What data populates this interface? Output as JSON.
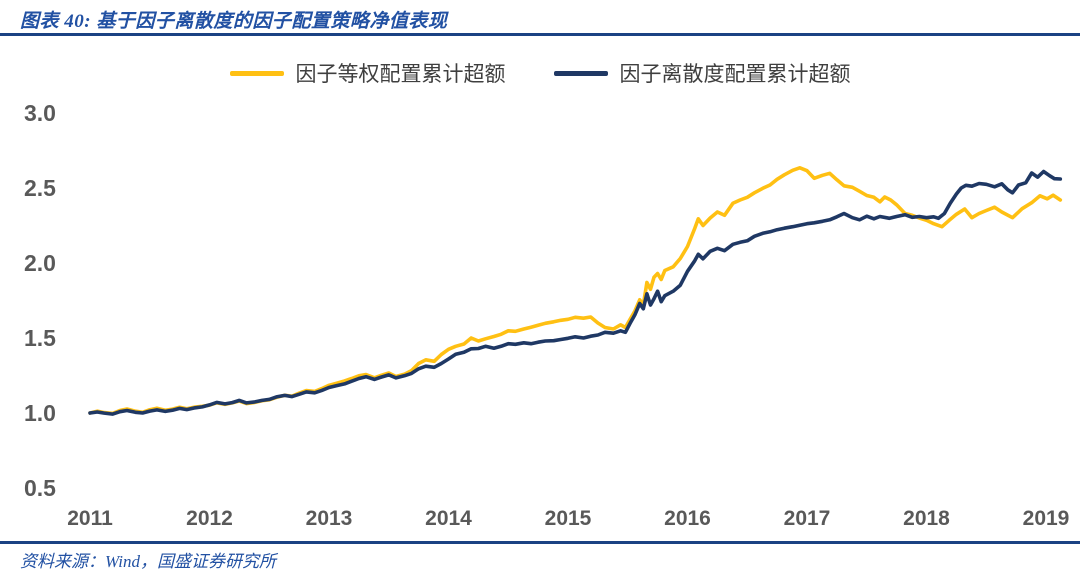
{
  "page": {
    "title": "图表 40: 基于因子离散度的因子配置策略净值表现",
    "source": "资料来源：Wind，国盛证券研究所"
  },
  "colors": {
    "accent_blue": "#2251A3",
    "divider_blue": "#1B4283",
    "axis_label_gray": "#595959",
    "series_yellow": "#FFC013",
    "series_navy": "#1F3864"
  },
  "chart_data": {
    "type": "line",
    "title": "基于因子离散度的因子配置策略净值表现",
    "xlabel": "",
    "ylabel": "",
    "grid": false,
    "legend_position": "top-center",
    "xlim": [
      2010.82,
      2019.28
    ],
    "ylim": [
      0.5,
      3.0
    ],
    "y_ticks": [
      {
        "label": "3.0",
        "value": 3.0
      },
      {
        "label": "2.5",
        "value": 2.5
      },
      {
        "label": "2.0",
        "value": 2.0
      },
      {
        "label": "1.5",
        "value": 1.5
      },
      {
        "label": "1.0",
        "value": 1.0
      },
      {
        "label": "0.5",
        "value": 0.5
      }
    ],
    "x_ticks": [
      {
        "label": "2011",
        "value": 2011
      },
      {
        "label": "2012",
        "value": 2012
      },
      {
        "label": "2013",
        "value": 2013
      },
      {
        "label": "2014",
        "value": 2014
      },
      {
        "label": "2015",
        "value": 2015
      },
      {
        "label": "2016",
        "value": 2016
      },
      {
        "label": "2017",
        "value": 2017
      },
      {
        "label": "2018",
        "value": 2018
      },
      {
        "label": "2019",
        "value": 2019
      }
    ],
    "series": [
      {
        "key": "equal-weight",
        "name": "因子等权配置累计超额",
        "color": "#FFC013",
        "points": [
          [
            2011.0,
            1.0
          ],
          [
            2011.06,
            1.012
          ],
          [
            2011.12,
            1.003
          ],
          [
            2011.19,
            0.997
          ],
          [
            2011.25,
            1.017
          ],
          [
            2011.31,
            1.027
          ],
          [
            2011.38,
            1.012
          ],
          [
            2011.44,
            1.005
          ],
          [
            2011.5,
            1.022
          ],
          [
            2011.56,
            1.032
          ],
          [
            2011.63,
            1.018
          ],
          [
            2011.69,
            1.026
          ],
          [
            2011.75,
            1.038
          ],
          [
            2011.81,
            1.028
          ],
          [
            2011.88,
            1.04
          ],
          [
            2011.94,
            1.045
          ],
          [
            2012.0,
            1.052
          ],
          [
            2012.06,
            1.068
          ],
          [
            2012.13,
            1.058
          ],
          [
            2012.19,
            1.067
          ],
          [
            2012.25,
            1.08
          ],
          [
            2012.31,
            1.063
          ],
          [
            2012.38,
            1.071
          ],
          [
            2012.44,
            1.082
          ],
          [
            2012.5,
            1.088
          ],
          [
            2012.56,
            1.104
          ],
          [
            2012.63,
            1.118
          ],
          [
            2012.69,
            1.112
          ],
          [
            2012.75,
            1.132
          ],
          [
            2012.81,
            1.15
          ],
          [
            2012.88,
            1.144
          ],
          [
            2012.94,
            1.163
          ],
          [
            2013.0,
            1.185
          ],
          [
            2013.06,
            1.198
          ],
          [
            2013.13,
            1.213
          ],
          [
            2013.19,
            1.23
          ],
          [
            2013.25,
            1.248
          ],
          [
            2013.31,
            1.257
          ],
          [
            2013.38,
            1.235
          ],
          [
            2013.44,
            1.252
          ],
          [
            2013.5,
            1.267
          ],
          [
            2013.56,
            1.243
          ],
          [
            2013.63,
            1.258
          ],
          [
            2013.69,
            1.283
          ],
          [
            2013.75,
            1.33
          ],
          [
            2013.81,
            1.355
          ],
          [
            2013.88,
            1.345
          ],
          [
            2013.94,
            1.39
          ],
          [
            2014.0,
            1.425
          ],
          [
            2014.06,
            1.445
          ],
          [
            2014.13,
            1.46
          ],
          [
            2014.19,
            1.5
          ],
          [
            2014.25,
            1.48
          ],
          [
            2014.31,
            1.495
          ],
          [
            2014.38,
            1.51
          ],
          [
            2014.44,
            1.525
          ],
          [
            2014.5,
            1.548
          ],
          [
            2014.56,
            1.545
          ],
          [
            2014.63,
            1.56
          ],
          [
            2014.69,
            1.572
          ],
          [
            2014.75,
            1.585
          ],
          [
            2014.81,
            1.598
          ],
          [
            2014.88,
            1.608
          ],
          [
            2014.94,
            1.618
          ],
          [
            2015.0,
            1.625
          ],
          [
            2015.06,
            1.638
          ],
          [
            2015.13,
            1.632
          ],
          [
            2015.19,
            1.64
          ],
          [
            2015.25,
            1.6
          ],
          [
            2015.31,
            1.57
          ],
          [
            2015.38,
            1.56
          ],
          [
            2015.44,
            1.588
          ],
          [
            2015.48,
            1.57
          ],
          [
            2015.52,
            1.625
          ],
          [
            2015.56,
            1.68
          ],
          [
            2015.6,
            1.755
          ],
          [
            2015.63,
            1.72
          ],
          [
            2015.66,
            1.87
          ],
          [
            2015.69,
            1.825
          ],
          [
            2015.72,
            1.905
          ],
          [
            2015.75,
            1.93
          ],
          [
            2015.78,
            1.89
          ],
          [
            2015.81,
            1.95
          ],
          [
            2015.88,
            1.975
          ],
          [
            2015.94,
            2.03
          ],
          [
            2016.0,
            2.11
          ],
          [
            2016.06,
            2.23
          ],
          [
            2016.09,
            2.295
          ],
          [
            2016.13,
            2.25
          ],
          [
            2016.19,
            2.3
          ],
          [
            2016.25,
            2.34
          ],
          [
            2016.31,
            2.318
          ],
          [
            2016.38,
            2.398
          ],
          [
            2016.44,
            2.42
          ],
          [
            2016.5,
            2.438
          ],
          [
            2016.56,
            2.468
          ],
          [
            2016.63,
            2.498
          ],
          [
            2016.69,
            2.52
          ],
          [
            2016.75,
            2.558
          ],
          [
            2016.81,
            2.588
          ],
          [
            2016.88,
            2.618
          ],
          [
            2016.94,
            2.635
          ],
          [
            2017.0,
            2.615
          ],
          [
            2017.06,
            2.565
          ],
          [
            2017.13,
            2.585
          ],
          [
            2017.19,
            2.598
          ],
          [
            2017.25,
            2.555
          ],
          [
            2017.31,
            2.515
          ],
          [
            2017.38,
            2.505
          ],
          [
            2017.44,
            2.478
          ],
          [
            2017.5,
            2.45
          ],
          [
            2017.56,
            2.438
          ],
          [
            2017.61,
            2.408
          ],
          [
            2017.65,
            2.44
          ],
          [
            2017.7,
            2.42
          ],
          [
            2017.75,
            2.388
          ],
          [
            2017.82,
            2.33
          ],
          [
            2017.88,
            2.318
          ],
          [
            2017.94,
            2.3
          ],
          [
            2018.0,
            2.285
          ],
          [
            2018.06,
            2.262
          ],
          [
            2018.13,
            2.242
          ],
          [
            2018.19,
            2.285
          ],
          [
            2018.25,
            2.325
          ],
          [
            2018.32,
            2.36
          ],
          [
            2018.38,
            2.302
          ],
          [
            2018.44,
            2.33
          ],
          [
            2018.5,
            2.35
          ],
          [
            2018.57,
            2.372
          ],
          [
            2018.63,
            2.34
          ],
          [
            2018.72,
            2.302
          ],
          [
            2018.8,
            2.362
          ],
          [
            2018.88,
            2.402
          ],
          [
            2018.95,
            2.448
          ],
          [
            2019.01,
            2.428
          ],
          [
            2019.06,
            2.452
          ],
          [
            2019.12,
            2.42
          ]
        ]
      },
      {
        "key": "dispersion",
        "name": "因子离散度配置累计超额",
        "color": "#1F3864",
        "points": [
          [
            2011.0,
            1.0
          ],
          [
            2011.06,
            1.007
          ],
          [
            2011.12,
            0.999
          ],
          [
            2011.19,
            0.993
          ],
          [
            2011.25,
            1.009
          ],
          [
            2011.31,
            1.017
          ],
          [
            2011.38,
            1.005
          ],
          [
            2011.44,
            1.0
          ],
          [
            2011.5,
            1.013
          ],
          [
            2011.56,
            1.021
          ],
          [
            2011.63,
            1.011
          ],
          [
            2011.69,
            1.019
          ],
          [
            2011.75,
            1.031
          ],
          [
            2011.81,
            1.023
          ],
          [
            2011.88,
            1.035
          ],
          [
            2011.94,
            1.041
          ],
          [
            2012.0,
            1.054
          ],
          [
            2012.06,
            1.071
          ],
          [
            2012.13,
            1.061
          ],
          [
            2012.19,
            1.069
          ],
          [
            2012.25,
            1.084
          ],
          [
            2012.31,
            1.067
          ],
          [
            2012.38,
            1.074
          ],
          [
            2012.44,
            1.084
          ],
          [
            2012.5,
            1.091
          ],
          [
            2012.56,
            1.107
          ],
          [
            2012.63,
            1.117
          ],
          [
            2012.69,
            1.109
          ],
          [
            2012.75,
            1.125
          ],
          [
            2012.81,
            1.141
          ],
          [
            2012.88,
            1.135
          ],
          [
            2012.94,
            1.151
          ],
          [
            2013.0,
            1.17
          ],
          [
            2013.06,
            1.182
          ],
          [
            2013.13,
            1.194
          ],
          [
            2013.19,
            1.212
          ],
          [
            2013.25,
            1.23
          ],
          [
            2013.31,
            1.242
          ],
          [
            2013.38,
            1.224
          ],
          [
            2013.44,
            1.24
          ],
          [
            2013.5,
            1.254
          ],
          [
            2013.56,
            1.234
          ],
          [
            2013.63,
            1.248
          ],
          [
            2013.69,
            1.264
          ],
          [
            2013.75,
            1.295
          ],
          [
            2013.81,
            1.312
          ],
          [
            2013.88,
            1.305
          ],
          [
            2013.94,
            1.33
          ],
          [
            2014.0,
            1.36
          ],
          [
            2014.06,
            1.392
          ],
          [
            2014.13,
            1.405
          ],
          [
            2014.19,
            1.428
          ],
          [
            2014.25,
            1.43
          ],
          [
            2014.31,
            1.445
          ],
          [
            2014.38,
            1.432
          ],
          [
            2014.44,
            1.445
          ],
          [
            2014.5,
            1.462
          ],
          [
            2014.56,
            1.458
          ],
          [
            2014.63,
            1.468
          ],
          [
            2014.69,
            1.462
          ],
          [
            2014.75,
            1.472
          ],
          [
            2014.81,
            1.48
          ],
          [
            2014.88,
            1.482
          ],
          [
            2014.94,
            1.49
          ],
          [
            2015.0,
            1.498
          ],
          [
            2015.06,
            1.508
          ],
          [
            2015.13,
            1.5
          ],
          [
            2015.19,
            1.512
          ],
          [
            2015.25,
            1.52
          ],
          [
            2015.31,
            1.538
          ],
          [
            2015.38,
            1.532
          ],
          [
            2015.44,
            1.548
          ],
          [
            2015.48,
            1.538
          ],
          [
            2015.52,
            1.598
          ],
          [
            2015.56,
            1.655
          ],
          [
            2015.6,
            1.73
          ],
          [
            2015.63,
            1.695
          ],
          [
            2015.66,
            1.795
          ],
          [
            2015.69,
            1.72
          ],
          [
            2015.72,
            1.762
          ],
          [
            2015.75,
            1.812
          ],
          [
            2015.78,
            1.742
          ],
          [
            2015.81,
            1.782
          ],
          [
            2015.88,
            1.812
          ],
          [
            2015.94,
            1.852
          ],
          [
            2016.0,
            1.945
          ],
          [
            2016.06,
            2.015
          ],
          [
            2016.09,
            2.058
          ],
          [
            2016.13,
            2.028
          ],
          [
            2016.19,
            2.078
          ],
          [
            2016.25,
            2.098
          ],
          [
            2016.31,
            2.082
          ],
          [
            2016.38,
            2.125
          ],
          [
            2016.44,
            2.138
          ],
          [
            2016.5,
            2.148
          ],
          [
            2016.56,
            2.178
          ],
          [
            2016.63,
            2.198
          ],
          [
            2016.69,
            2.208
          ],
          [
            2016.75,
            2.222
          ],
          [
            2016.81,
            2.232
          ],
          [
            2016.88,
            2.242
          ],
          [
            2016.94,
            2.252
          ],
          [
            2017.0,
            2.262
          ],
          [
            2017.06,
            2.268
          ],
          [
            2017.13,
            2.278
          ],
          [
            2017.19,
            2.288
          ],
          [
            2017.25,
            2.308
          ],
          [
            2017.31,
            2.33
          ],
          [
            2017.38,
            2.302
          ],
          [
            2017.44,
            2.288
          ],
          [
            2017.5,
            2.312
          ],
          [
            2017.56,
            2.295
          ],
          [
            2017.61,
            2.31
          ],
          [
            2017.69,
            2.298
          ],
          [
            2017.75,
            2.31
          ],
          [
            2017.82,
            2.322
          ],
          [
            2017.88,
            2.305
          ],
          [
            2017.94,
            2.31
          ],
          [
            2018.0,
            2.302
          ],
          [
            2018.06,
            2.308
          ],
          [
            2018.1,
            2.298
          ],
          [
            2018.15,
            2.33
          ],
          [
            2018.2,
            2.4
          ],
          [
            2018.25,
            2.46
          ],
          [
            2018.29,
            2.5
          ],
          [
            2018.33,
            2.518
          ],
          [
            2018.38,
            2.512
          ],
          [
            2018.44,
            2.53
          ],
          [
            2018.5,
            2.525
          ],
          [
            2018.57,
            2.508
          ],
          [
            2018.63,
            2.528
          ],
          [
            2018.68,
            2.488
          ],
          [
            2018.72,
            2.468
          ],
          [
            2018.77,
            2.52
          ],
          [
            2018.83,
            2.535
          ],
          [
            2018.88,
            2.6
          ],
          [
            2018.93,
            2.572
          ],
          [
            2018.98,
            2.61
          ],
          [
            2019.03,
            2.582
          ],
          [
            2019.07,
            2.562
          ],
          [
            2019.12,
            2.56
          ]
        ]
      }
    ]
  }
}
